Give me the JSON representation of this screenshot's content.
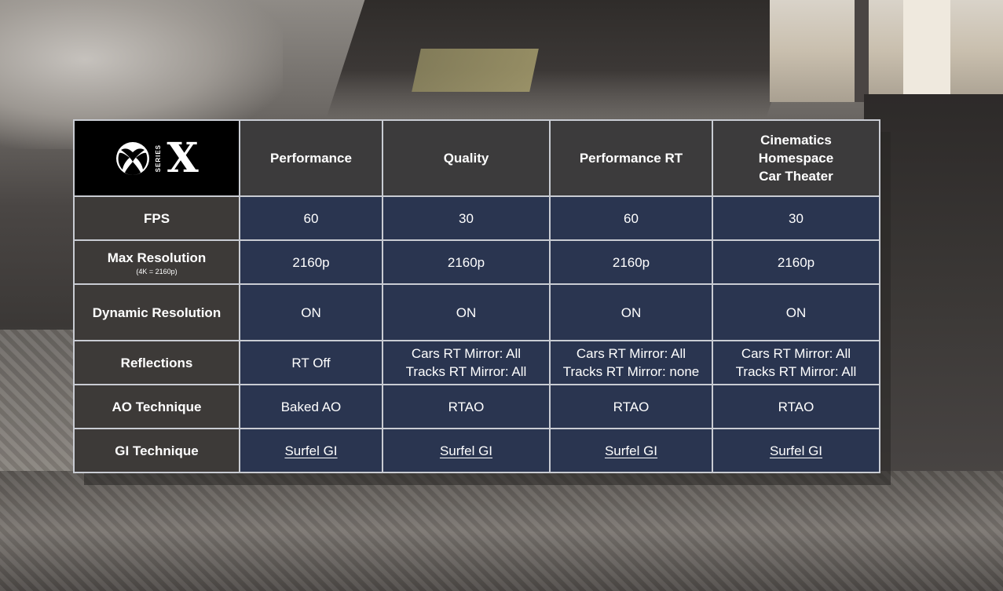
{
  "logo": {
    "brand_icon": "xbox-sphere-icon",
    "series_text": "SERIES",
    "model_letter": "X"
  },
  "columns": [
    {
      "label_lines": [
        "Performance"
      ]
    },
    {
      "label_lines": [
        "Quality"
      ]
    },
    {
      "label_lines": [
        "Performance RT"
      ]
    },
    {
      "label_lines": [
        "Cinematics",
        "Homespace",
        "Car Theater"
      ]
    }
  ],
  "rows": [
    {
      "label": "FPS",
      "sublabel": "",
      "values": [
        [
          "60"
        ],
        [
          "30"
        ],
        [
          "60"
        ],
        [
          "30"
        ]
      ]
    },
    {
      "label": "Max Resolution",
      "sublabel": "(4K = 2160p)",
      "values": [
        [
          "2160p"
        ],
        [
          "2160p"
        ],
        [
          "2160p"
        ],
        [
          "2160p"
        ]
      ]
    },
    {
      "label": "Dynamic Resolution",
      "sublabel": "",
      "values": [
        [
          "ON"
        ],
        [
          "ON"
        ],
        [
          "ON"
        ],
        [
          "ON"
        ]
      ]
    },
    {
      "label": "Reflections",
      "sublabel": "",
      "values": [
        [
          "RT Off"
        ],
        [
          "Cars RT Mirror: All",
          "Tracks RT Mirror: All"
        ],
        [
          "Cars RT Mirror: All",
          "Tracks RT Mirror: none"
        ],
        [
          "Cars RT Mirror: All",
          "Tracks RT Mirror: All"
        ]
      ]
    },
    {
      "label": "AO Technique",
      "sublabel": "",
      "values": [
        [
          "Baked AO"
        ],
        [
          "RTAO"
        ],
        [
          "RTAO"
        ],
        [
          "RTAO"
        ]
      ]
    },
    {
      "label": "GI Technique",
      "sublabel": "",
      "values": [
        [
          "Surfel GI"
        ],
        [
          "Surfel GI"
        ],
        [
          "Surfel GI"
        ],
        [
          "Surfel GI"
        ]
      ]
    }
  ],
  "colors": {
    "header_bg": "#3c3b3c",
    "label_bg": "#3d3a38",
    "value_bg": "#2a3550",
    "logo_bg": "#000000",
    "border": "#c9ccd3"
  }
}
